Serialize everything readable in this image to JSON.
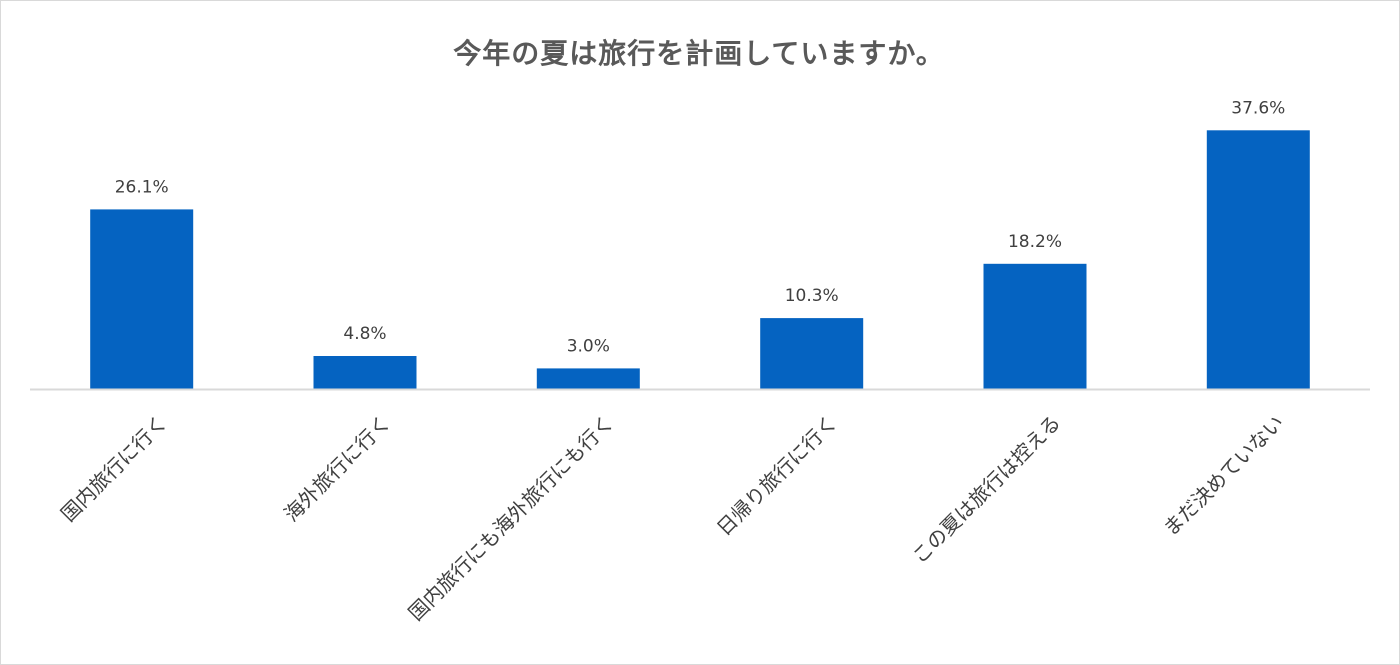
{
  "chart_data": {
    "type": "bar",
    "title": "今年の夏は旅行を計画していますか。",
    "categories": [
      "国内旅行に行く",
      "海外旅行に行く",
      "国内旅行にも海外旅行にも行く",
      "日帰り旅行に行く",
      "この夏は旅行は控える",
      "まだ決めていない"
    ],
    "values": [
      26.1,
      4.8,
      3.0,
      10.3,
      18.2,
      37.6
    ],
    "value_labels": [
      "26.1%",
      "4.8%",
      "3.0%",
      "10.3%",
      "18.2%",
      "37.6%"
    ],
    "unit": "%",
    "ylim": [
      0,
      40
    ],
    "grid": false,
    "legend": "none",
    "bar_color": "#0563C1",
    "axis_color": "#D9D9D9",
    "text_color": "#404040"
  }
}
